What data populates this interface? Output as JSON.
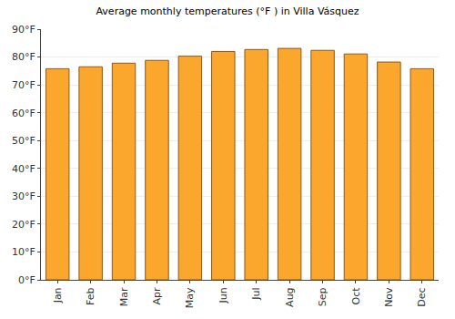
{
  "chart_data": {
    "type": "bar",
    "title": "Average monthly temperatures (°F ) in Villa Vásquez",
    "categories": [
      "Jan",
      "Feb",
      "Mar",
      "Apr",
      "May",
      "Jun",
      "Jul",
      "Aug",
      "Sep",
      "Oct",
      "Nov",
      "Dec"
    ],
    "values": [
      75.8,
      76.5,
      77.8,
      78.8,
      80.3,
      82.0,
      82.7,
      83.1,
      82.4,
      81.1,
      78.2,
      75.8
    ],
    "color": "#fba62c",
    "ylim": [
      0,
      90
    ],
    "yticks": [
      {
        "value": 0,
        "label": "0°F"
      },
      {
        "value": 10,
        "label": "10°F"
      },
      {
        "value": 20,
        "label": "20°F"
      },
      {
        "value": 30,
        "label": "30°F"
      },
      {
        "value": 40,
        "label": "40°F"
      },
      {
        "value": 50,
        "label": "50°F"
      },
      {
        "value": 60,
        "label": "60°F"
      },
      {
        "value": 70,
        "label": "70°F"
      },
      {
        "value": 80,
        "label": "80°F"
      },
      {
        "value": 90,
        "label": "90°F"
      }
    ],
    "grid": true
  }
}
